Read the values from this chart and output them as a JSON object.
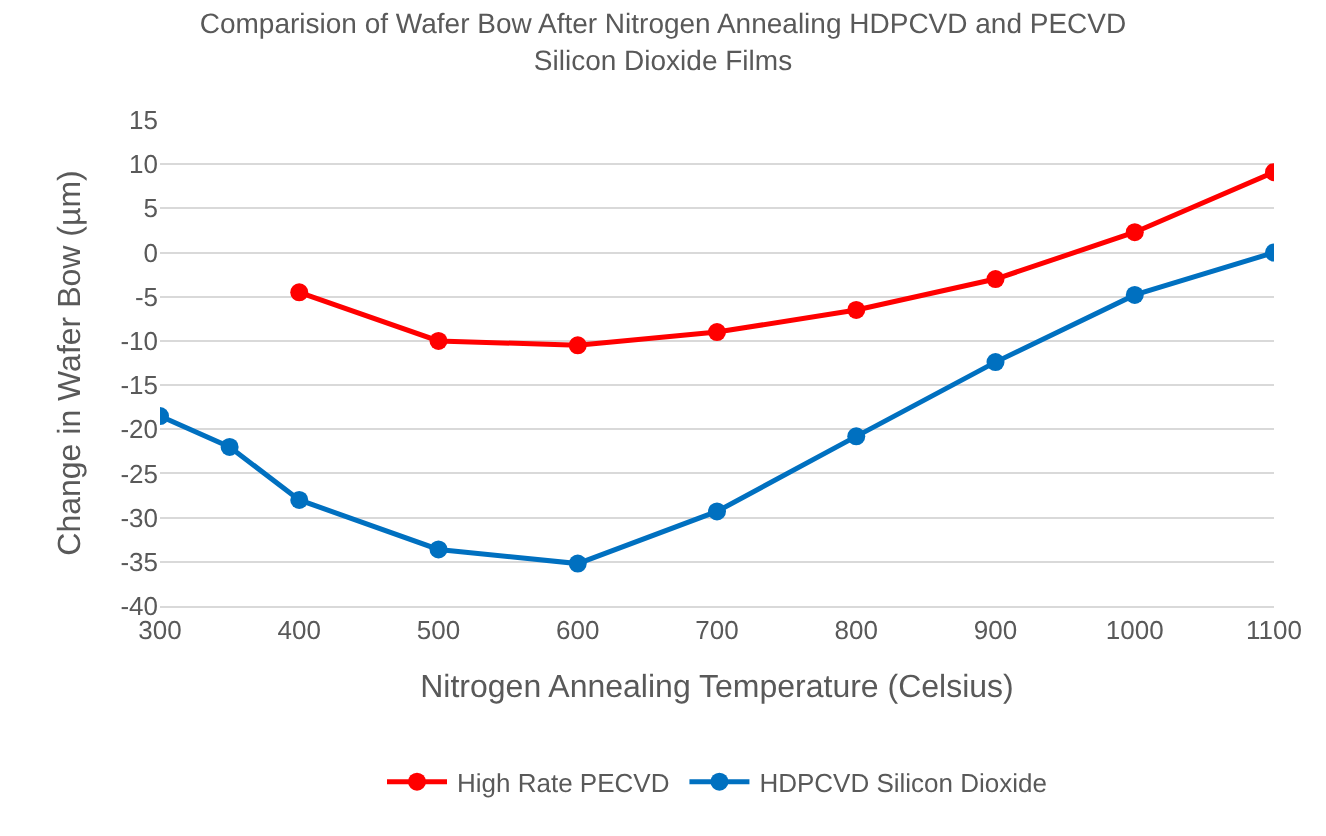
{
  "chart_data": {
    "type": "line",
    "title": "Comparision of Wafer Bow After Nitrogen Annealing HDPCVD and PECVD Silicon Dioxide Films",
    "xlabel": "Nitrogen Annealing Temperature (Celsius)",
    "ylabel": "Change in Wafer Bow (µm)",
    "series": [
      {
        "name": "High Rate PECVD",
        "color": "#ff0000",
        "x": [
          400,
          500,
          600,
          700,
          800,
          900,
          1000,
          1100
        ],
        "values": [
          -4.5,
          -10,
          -10.5,
          -9,
          -6.5,
          -3,
          2.3,
          9.1
        ]
      },
      {
        "name": "HDPCVD Silicon Dioxide",
        "color": "#0070c0",
        "x": [
          300,
          350,
          400,
          500,
          600,
          700,
          800,
          900,
          1000,
          1100
        ],
        "values": [
          -18.5,
          -22,
          -28,
          -33.6,
          -35.2,
          -29.3,
          -20.8,
          -12.4,
          -4.8,
          0
        ]
      }
    ],
    "xlim": [
      300,
      1100
    ],
    "xticks": [
      300,
      400,
      500,
      600,
      700,
      800,
      900,
      1000,
      1100
    ],
    "ylim": [
      -40,
      15
    ],
    "yticks": [
      -40,
      -35,
      -30,
      -25,
      -20,
      -15,
      -10,
      -5,
      0,
      5,
      10,
      15
    ],
    "grid": "y",
    "legend": "bottom",
    "marker": "circle",
    "line_style": "solid"
  }
}
